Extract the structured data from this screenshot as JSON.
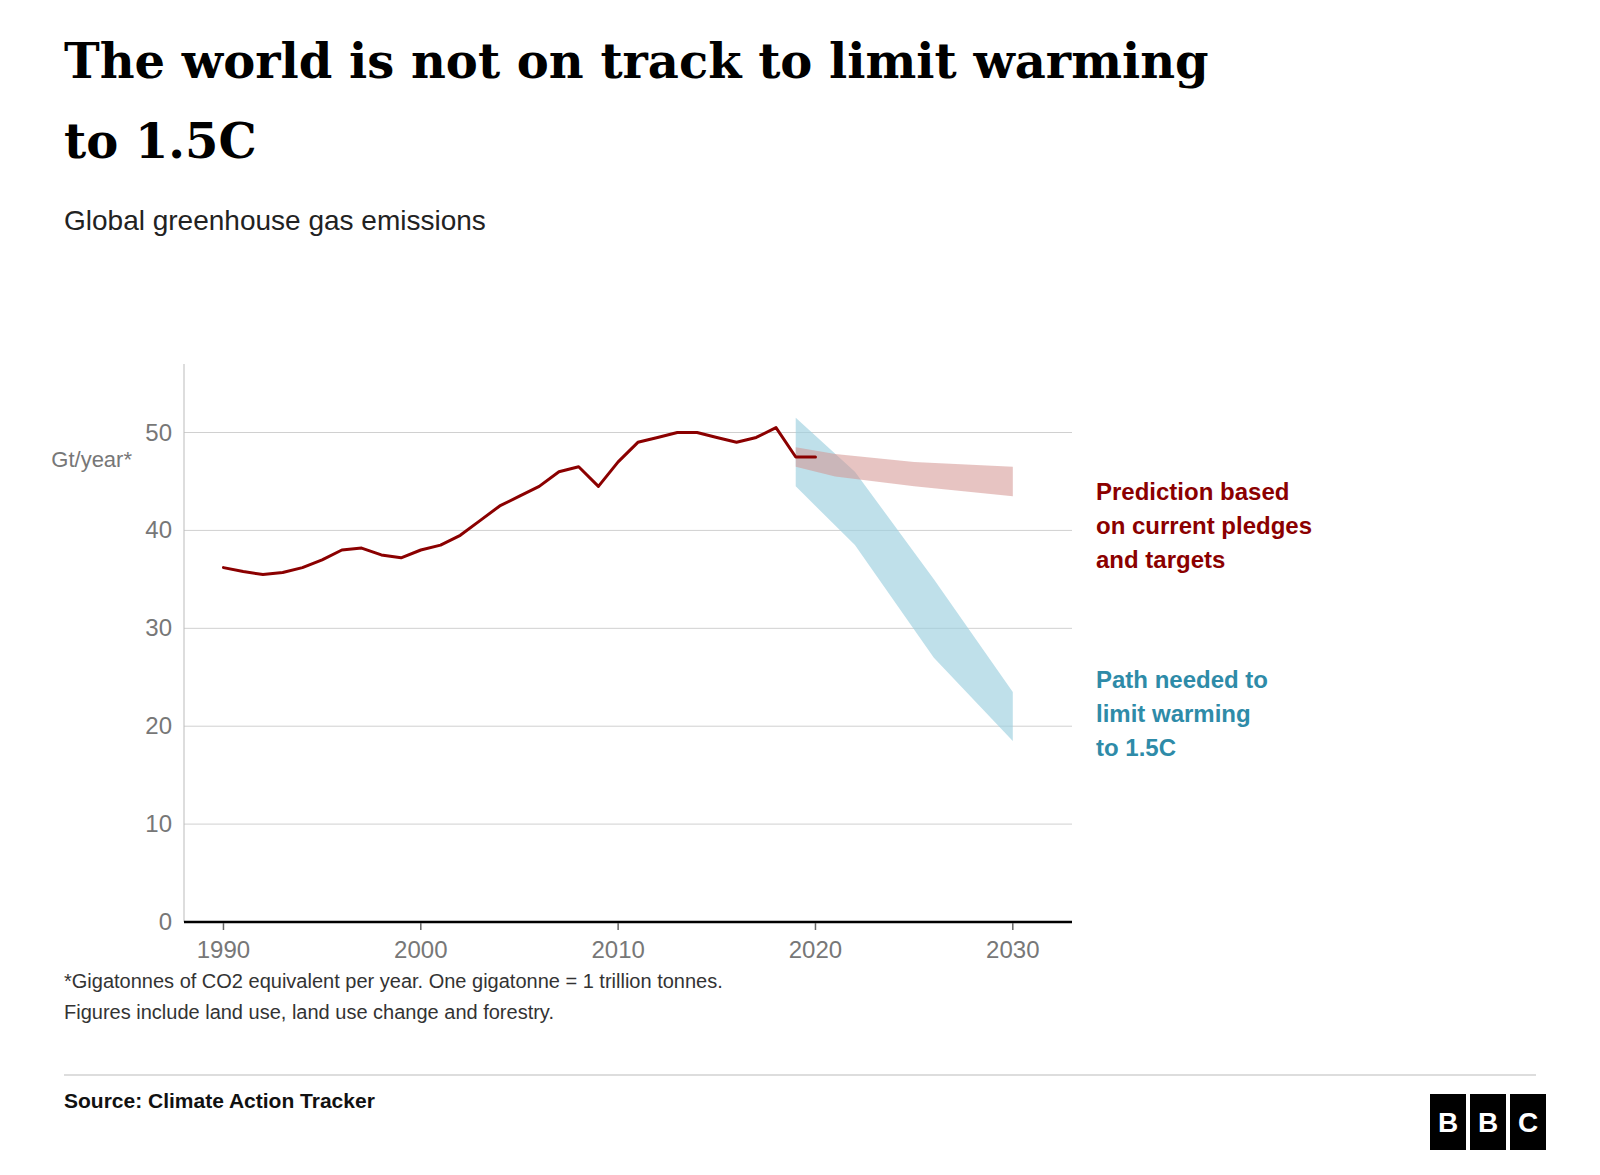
{
  "chart_data": {
    "type": "line",
    "title": "The world is not on track to limit warming\nto 1.5C",
    "subtitle": "Global greenhouse gas emissions",
    "ylabel": "Gt/year*",
    "xlim": [
      1988,
      2033
    ],
    "ylim": [
      0,
      57
    ],
    "xticks": [
      1990,
      2000,
      2010,
      2020,
      2030
    ],
    "yticks": [
      0,
      10,
      20,
      30,
      40,
      50
    ],
    "grid": true,
    "series": [
      {
        "type": "band",
        "color": "#9DCFDE",
        "x": [
          2019,
          2022,
          2026,
          2030
        ],
        "lower": [
          44.5,
          38.5,
          27.0,
          18.5
        ],
        "upper": [
          51.5,
          46.0,
          35.0,
          23.5
        ]
      },
      {
        "type": "band",
        "color": "#D4938F",
        "x": [
          2019,
          2021,
          2025,
          2030
        ],
        "lower": [
          46.5,
          45.5,
          44.5,
          43.5
        ],
        "upper": [
          48.5,
          47.8,
          47.0,
          46.5
        ]
      },
      {
        "type": "line",
        "color": "#8B0000",
        "x": [
          1990,
          1991,
          1992,
          1993,
          1994,
          1995,
          1996,
          1997,
          1998,
          1999,
          2000,
          2001,
          2002,
          2003,
          2004,
          2005,
          2006,
          2007,
          2008,
          2009,
          2010,
          2011,
          2012,
          2013,
          2014,
          2015,
          2016,
          2017,
          2018,
          2019,
          2020
        ],
        "values": [
          36.2,
          35.8,
          35.5,
          35.7,
          36.2,
          37.0,
          38.0,
          38.2,
          37.5,
          37.2,
          38.0,
          38.5,
          39.5,
          41.0,
          42.5,
          43.5,
          44.5,
          46.0,
          46.5,
          44.5,
          47.0,
          49.0,
          49.5,
          50.0,
          50.0,
          49.5,
          49.0,
          49.5,
          50.5,
          47.5,
          47.5
        ]
      }
    ],
    "annotations": [
      {
        "text": "Prediction based\non current pledges\nand targets",
        "color": "#8B0000"
      },
      {
        "text": "Path needed to\nlimit warming\nto 1.5C",
        "color": "#2E8BA8"
      }
    ],
    "footnote": "*Gigatonnes of CO2 equivalent per year. One gigatonne = 1 trillion tonnes.\nFigures include land use, land use change and forestry.",
    "source": "Source: Climate Action Tracker",
    "logo": "BBC"
  }
}
